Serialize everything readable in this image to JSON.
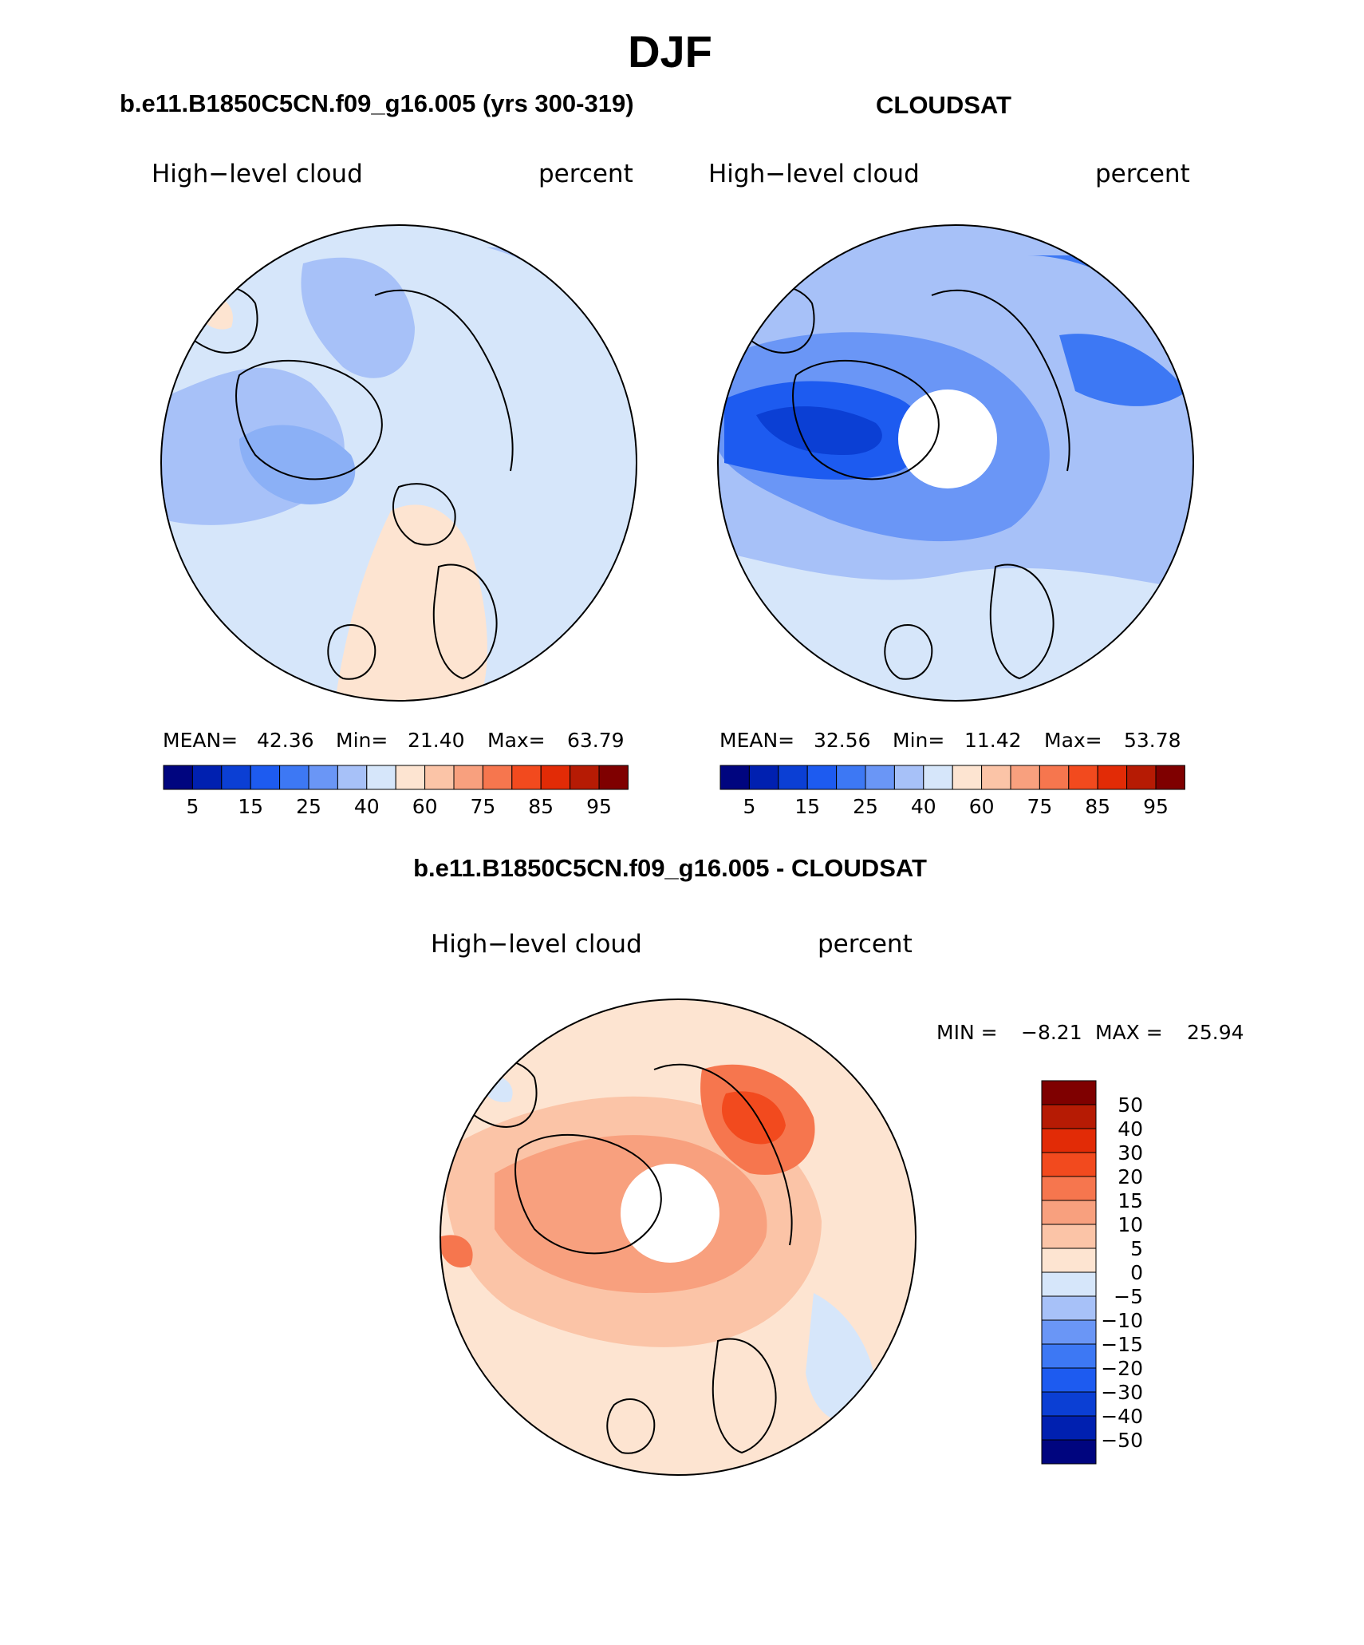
{
  "title": "DJF",
  "colors": {
    "blue_scale": [
      "#00057f",
      "#0020b0",
      "#0b3fd4",
      "#1d5bf0",
      "#3d78f4",
      "#6a96f6",
      "#a7c1f8",
      "#d6e6fa"
    ],
    "red_scale": [
      "#fde4d1",
      "#fbc4a7",
      "#f8a07e",
      "#f6764e",
      "#f24a1e",
      "#e22b06",
      "#b61b04",
      "#7f0000"
    ],
    "land_outline": "#000000"
  },
  "panels": [
    {
      "subtitle": "b.e11.B1850C5CN.f09_g16.005 (yrs 300-319)",
      "variable_label": "High−level cloud",
      "units_label": "percent",
      "stats": {
        "mean_label": "MEAN=",
        "mean": "42.36",
        "min_label": "Min=",
        "min": "21.40",
        "max_label": "Max=",
        "max": "63.79"
      },
      "colorbar_ticks": [
        "5",
        "15",
        "25",
        "40",
        "60",
        "75",
        "85",
        "95"
      ]
    },
    {
      "subtitle": "CLOUDSAT",
      "variable_label": "High−level cloud",
      "units_label": "percent",
      "stats": {
        "mean_label": "MEAN=",
        "mean": "32.56",
        "min_label": "Min=",
        "min": "11.42",
        "max_label": "Max=",
        "max": "53.78"
      },
      "colorbar_ticks": [
        "5",
        "15",
        "25",
        "40",
        "60",
        "75",
        "85",
        "95"
      ]
    },
    {
      "subtitle": "b.e11.B1850C5CN.f09_g16.005 - CLOUDSAT",
      "variable_label": "High−level cloud",
      "units_label": "percent",
      "stats": {
        "min_label": "MIN =",
        "min": "−8.21",
        "max_label": "MAX =",
        "max": "25.94"
      },
      "colorbar_ticks": [
        "50",
        "40",
        "30",
        "20",
        "15",
        "10",
        "5",
        "0",
        "−5",
        "−10",
        "−15",
        "−20",
        "−30",
        "−40",
        "−50"
      ]
    }
  ]
}
